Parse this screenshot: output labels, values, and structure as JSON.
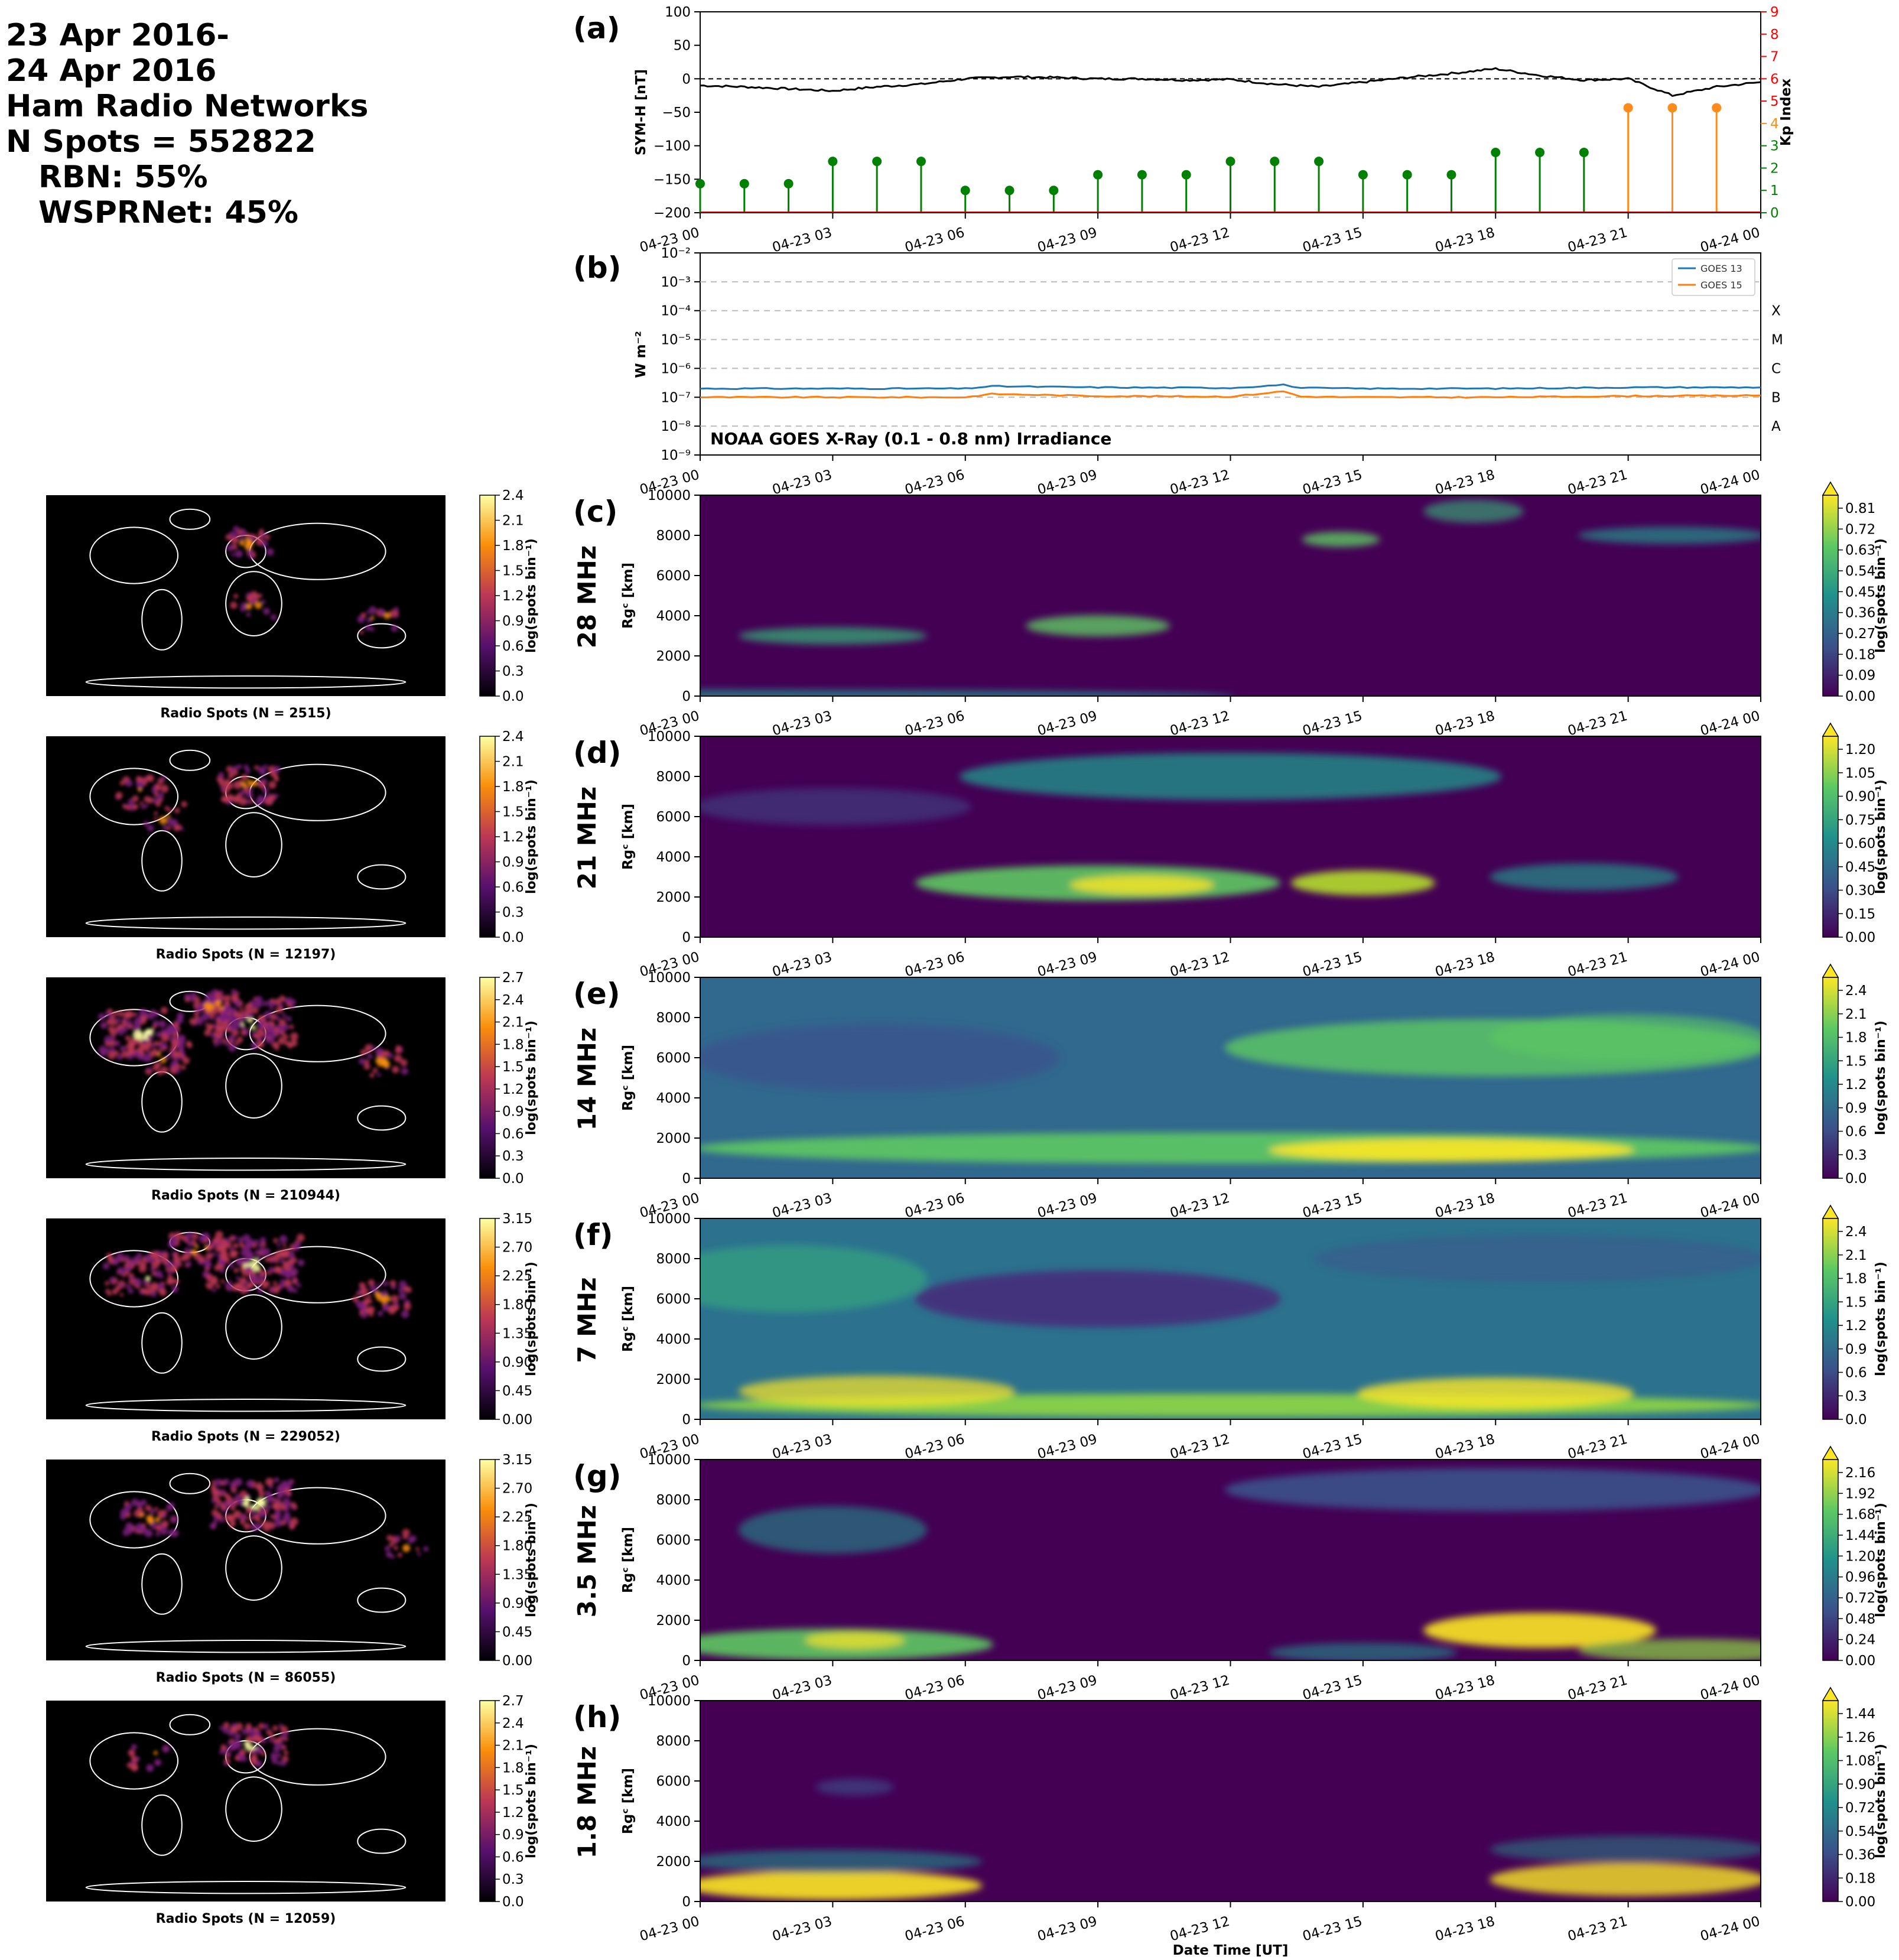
{
  "header": {
    "lines": [
      "23 Apr 2016-",
      "24 Apr 2016",
      "Ham Radio Networks",
      "N Spots = 552822"
    ],
    "sub_lines": [
      "RBN: 55%",
      "WSPRNet: 45%"
    ]
  },
  "time_ticks": [
    "04-23 00",
    "04-23 03",
    "04-23 06",
    "04-23 09",
    "04-23 12",
    "04-23 15",
    "04-23 18",
    "04-23 21",
    "04-24 00"
  ],
  "xlabel": "Date Time [UT]",
  "colors": {
    "symh_line": "#000000",
    "kp_low": "#008000",
    "kp_high": "#ff8c1a",
    "kp_axis": "#ff0000",
    "goes13": "#1f77b4",
    "goes15": "#ff7f0e",
    "map_bg": "#000000",
    "coast": "#ffffff"
  },
  "panel_a": {
    "label": "(a)",
    "ylabel": "SYM-H [nT]",
    "y2label": "Kp Index",
    "yticks": [
      "100",
      "50",
      "0",
      "−50",
      "−100",
      "−150",
      "−200"
    ],
    "y2ticks": [
      "9",
      "8",
      "7",
      "6",
      "5",
      "4",
      "3",
      "2",
      "1",
      "0"
    ]
  },
  "panel_b": {
    "label": "(b)",
    "ylabel": "W m⁻²",
    "annotation": "NOAA GOES X-Ray (0.1 - 0.8 nm) Irradiance",
    "yticks": [
      "10⁻²",
      "10⁻³",
      "10⁻⁴",
      "10⁻⁵",
      "10⁻⁶",
      "10⁻⁷",
      "10⁻⁸",
      "10⁻⁹"
    ],
    "classes": [
      "X",
      "M",
      "C",
      "B",
      "A"
    ],
    "legend": [
      "GOES 13",
      "GOES 15"
    ]
  },
  "bands": [
    {
      "label": "(c)",
      "freq": "28 MHz",
      "map_caption": "Radio Spots (N = 2515)",
      "map_cbar": [
        "2.4",
        "2.1",
        "1.8",
        "1.5",
        "1.2",
        "0.9",
        "0.6",
        "0.3",
        "0.0"
      ],
      "rtd_cbar": [
        "0.81",
        "0.72",
        "0.63",
        "0.54",
        "0.45",
        "0.36",
        "0.27",
        "0.18",
        "0.09",
        "0.00"
      ]
    },
    {
      "label": "(d)",
      "freq": "21 MHz",
      "map_caption": "Radio Spots (N = 12197)",
      "map_cbar": [
        "2.4",
        "2.1",
        "1.8",
        "1.5",
        "1.2",
        "0.9",
        "0.6",
        "0.3",
        "0.0"
      ],
      "rtd_cbar": [
        "1.20",
        "1.05",
        "0.90",
        "0.75",
        "0.60",
        "0.45",
        "0.30",
        "0.15",
        "0.00"
      ]
    },
    {
      "label": "(e)",
      "freq": "14 MHz",
      "map_caption": "Radio Spots (N = 210944)",
      "map_cbar": [
        "2.7",
        "2.4",
        "2.1",
        "1.8",
        "1.5",
        "1.2",
        "0.9",
        "0.6",
        "0.3",
        "0.0"
      ],
      "rtd_cbar": [
        "2.4",
        "2.1",
        "1.8",
        "1.5",
        "1.2",
        "0.9",
        "0.6",
        "0.3",
        "0.0"
      ]
    },
    {
      "label": "(f)",
      "freq": "7 MHz",
      "map_caption": "Radio Spots (N = 229052)",
      "map_cbar": [
        "3.15",
        "2.70",
        "2.25",
        "1.80",
        "1.35",
        "0.90",
        "0.45",
        "0.00"
      ],
      "rtd_cbar": [
        "2.4",
        "2.1",
        "1.8",
        "1.5",
        "1.2",
        "0.9",
        "0.6",
        "0.3",
        "0.0"
      ]
    },
    {
      "label": "(g)",
      "freq": "3.5 MHz",
      "map_caption": "Radio Spots (N = 86055)",
      "map_cbar": [
        "3.15",
        "2.70",
        "2.25",
        "1.80",
        "1.35",
        "0.90",
        "0.45",
        "0.00"
      ],
      "rtd_cbar": [
        "2.16",
        "1.92",
        "1.68",
        "1.44",
        "1.20",
        "0.96",
        "0.72",
        "0.48",
        "0.24",
        "0.00"
      ]
    },
    {
      "label": "(h)",
      "freq": "1.8 MHz",
      "map_caption": "Radio Spots (N = 12059)",
      "map_cbar": [
        "2.7",
        "2.4",
        "2.1",
        "1.8",
        "1.5",
        "1.2",
        "0.9",
        "0.6",
        "0.3",
        "0.0"
      ],
      "rtd_cbar": [
        "1.44",
        "1.26",
        "1.08",
        "0.90",
        "0.72",
        "0.54",
        "0.36",
        "0.18",
        "0.00"
      ]
    }
  ],
  "rgc_label": "Rɡᶜ [km]",
  "rgc_yticks": [
    "10000",
    "8000",
    "6000",
    "4000",
    "2000",
    "0"
  ],
  "cbar_label": "log(spots bin⁻¹)",
  "chart_data": [
    {
      "type": "line",
      "panel": "a",
      "ylabel": "SYM-H [nT]",
      "ylim": [
        -200,
        100
      ],
      "x_hours": [
        0,
        1,
        2,
        3,
        4,
        5,
        6,
        7,
        8,
        9,
        10,
        11,
        12,
        13,
        14,
        15,
        16,
        17,
        18,
        19,
        20,
        21,
        22,
        23,
        24
      ],
      "series": [
        {
          "values": [
            -10,
            -12,
            -15,
            -18,
            -12,
            -8,
            0,
            3,
            2,
            0,
            0,
            -2,
            -1,
            -8,
            -12,
            -5,
            2,
            8,
            15,
            5,
            -2,
            0,
            -25,
            -12,
            -5
          ]
        }
      ],
      "reference_line": 0
    },
    {
      "type": "bar",
      "panel": "a",
      "ylabel": "Kp Index",
      "ylim": [
        0,
        9
      ],
      "x_hours": [
        0,
        1,
        2,
        3,
        4,
        5,
        6,
        7,
        8,
        9,
        10,
        11,
        12,
        13,
        14,
        15,
        16,
        17,
        18,
        19,
        20,
        21,
        22,
        23
      ],
      "values": [
        1.3,
        1.3,
        1.3,
        2.3,
        2.3,
        2.3,
        1.0,
        1.0,
        1.0,
        1.7,
        1.7,
        1.7,
        2.3,
        2.3,
        2.3,
        1.7,
        1.7,
        1.7,
        2.7,
        2.7,
        2.7,
        4.7,
        4.7,
        4.7
      ]
    },
    {
      "type": "line",
      "panel": "b",
      "ylabel": "W m⁻²",
      "yscale": "log",
      "ylim": [
        1e-09,
        0.01
      ],
      "x_hours": [
        0,
        3,
        6,
        6.6,
        9,
        12,
        13.2,
        13.6,
        15,
        18,
        21,
        24
      ],
      "series": [
        {
          "name": "GOES 13",
          "values": [
            2e-07,
            2e-07,
            2e-07,
            2.4e-07,
            2.2e-07,
            2.1e-07,
            2.7e-07,
            2.1e-07,
            2e-07,
            2e-07,
            2.2e-07,
            2.2e-07
          ]
        },
        {
          "name": "GOES 15",
          "values": [
            1e-07,
            1e-07,
            1e-07,
            1.3e-07,
            1.1e-07,
            1.05e-07,
            1.6e-07,
            1.05e-07,
            1e-07,
            1e-07,
            1.1e-07,
            1.15e-07
          ]
        }
      ],
      "class_thresholds": {
        "A": 1e-08,
        "B": 1e-07,
        "C": 1e-06,
        "M": 1e-05,
        "X": 0.0001
      }
    },
    {
      "type": "heatmap",
      "panels": [
        "c",
        "d",
        "e",
        "f",
        "g",
        "h"
      ],
      "xlim_hours": [
        0,
        24
      ],
      "ylim": [
        0,
        10000
      ],
      "ylabel": "Rɡᶜ [km]",
      "colormap": "viridis"
    }
  ]
}
